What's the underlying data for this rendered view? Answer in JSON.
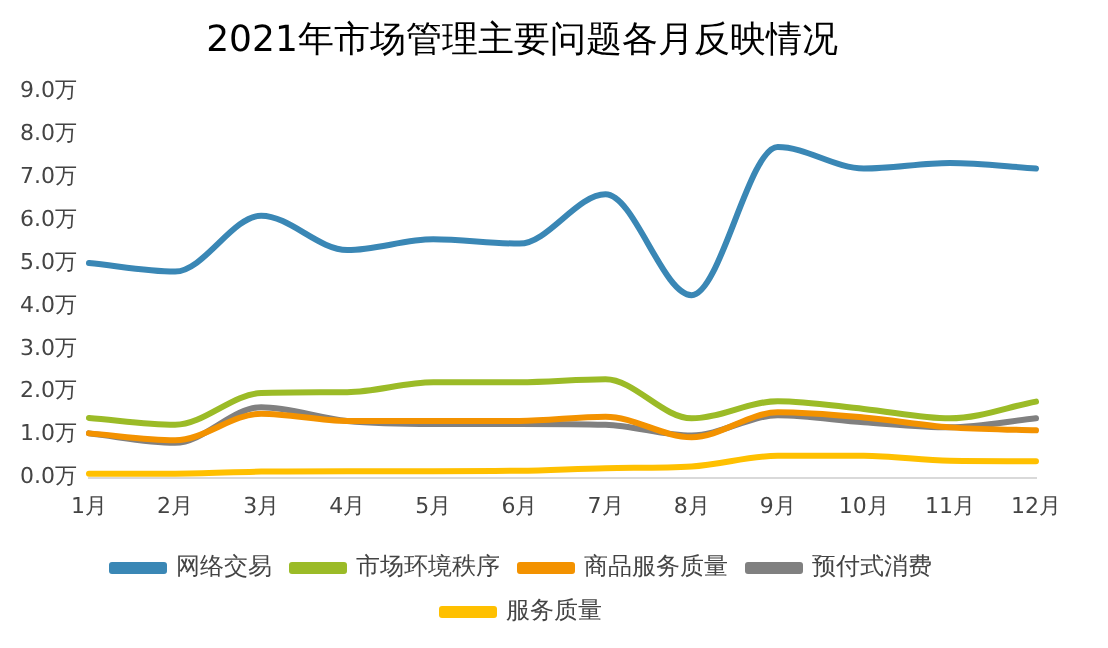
{
  "chart_data": {
    "type": "line",
    "title": "2021年市场管理主要问题各月反映情况",
    "categories": [
      "1月",
      "2月",
      "3月",
      "4月",
      "5月",
      "6月",
      "7月",
      "8月",
      "9月",
      "10月",
      "11月",
      "12月"
    ],
    "ylim": [
      0,
      9
    ],
    "yticks": [
      {
        "value": 0,
        "label": "0.0万"
      },
      {
        "value": 1,
        "label": "1.0万"
      },
      {
        "value": 2,
        "label": "2.0万"
      },
      {
        "value": 3,
        "label": "3.0万"
      },
      {
        "value": 4,
        "label": "4.0万"
      },
      {
        "value": 5,
        "label": "5.0万"
      },
      {
        "value": 6,
        "label": "6.0万"
      },
      {
        "value": 7,
        "label": "7.0万"
      },
      {
        "value": 8,
        "label": "8.0万"
      },
      {
        "value": 9,
        "label": "9.0万"
      }
    ],
    "grid": false,
    "legend": "bottom",
    "marker": "none",
    "line_style": "solid",
    "series": [
      {
        "name": "网络交易",
        "color": "#3a87b5",
        "values": [
          5.0,
          4.8,
          6.1,
          5.3,
          5.55,
          5.45,
          6.6,
          4.25,
          7.7,
          7.2,
          7.33,
          7.2
        ]
      },
      {
        "name": "市场环境秩序",
        "color": "#9bbb27",
        "values": [
          1.39,
          1.23,
          1.97,
          1.99,
          2.22,
          2.22,
          2.29,
          1.38,
          1.78,
          1.6,
          1.38,
          1.77
        ]
      },
      {
        "name": "商品服务质量",
        "color": "#f39200",
        "values": [
          1.03,
          0.87,
          1.49,
          1.32,
          1.32,
          1.32,
          1.42,
          0.94,
          1.52,
          1.4,
          1.17,
          1.1
        ]
      },
      {
        "name": "预付式消费",
        "color": "#808080",
        "values": [
          1.03,
          0.81,
          1.64,
          1.32,
          1.25,
          1.25,
          1.23,
          0.98,
          1.45,
          1.29,
          1.17,
          1.38
        ]
      },
      {
        "name": "服务质量",
        "color": "#ffc000",
        "values": [
          0.09,
          0.09,
          0.14,
          0.15,
          0.15,
          0.16,
          0.22,
          0.26,
          0.51,
          0.51,
          0.39,
          0.38
        ]
      }
    ]
  }
}
